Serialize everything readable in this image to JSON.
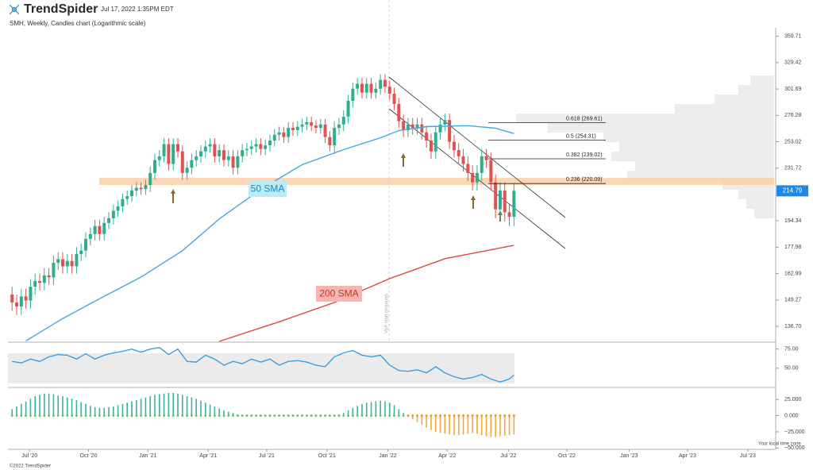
{
  "header": {
    "brand": "TrendSpider",
    "timestamp": "Jul 17, 2022 1:35PM EDT"
  },
  "footer": {
    "copyright": "©2022 TrendSpider",
    "timezone_note": "Your local time zone"
  },
  "chart_data": [
    {
      "type": "candlestick",
      "title": "SMH, Weekly, Candles chart (Logarithmic scale)",
      "log_scale": true,
      "xlim": [
        -0.9,
        165.5
      ],
      "xticks": [
        {
          "value": 3.8,
          "label": "Jul '20"
        },
        {
          "value": 16.6,
          "label": "Oct '20"
        },
        {
          "value": 29.5,
          "label": "Jan '21"
        },
        {
          "value": 42.6,
          "label": "Apr '21"
        },
        {
          "value": 55.3,
          "label": "Jul '21"
        },
        {
          "value": 68.4,
          "label": "Oct '21"
        },
        {
          "value": 81.6,
          "label": "Jan '22"
        },
        {
          "value": 94.5,
          "label": "Apr '22"
        },
        {
          "value": 107.8,
          "label": "Jul '22"
        },
        {
          "value": 120.5,
          "label": "Oct '22"
        },
        {
          "value": 134,
          "label": "Jan '23"
        },
        {
          "value": 146.7,
          "label": "Apr '23"
        },
        {
          "value": 159.8,
          "label": "Jul '23"
        }
      ],
      "ylim": [
        130,
        370
      ],
      "yticks": [
        {
          "value": 136.7,
          "label": "136.70"
        },
        149.27,
        162.99,
        177.98,
        194.34,
        231.72,
        253.02,
        276.28,
        301.69,
        329.42,
        359.71
      ],
      "up_color": "#2fae8e",
      "down_color": "#e0514f",
      "open": [
        152,
        148,
        146,
        151,
        149,
        156,
        159,
        158,
        162,
        161,
        169,
        171,
        167,
        170,
        167,
        174,
        176,
        183,
        186,
        191,
        186,
        193,
        196,
        201,
        204,
        209,
        211,
        215,
        217,
        216,
        219,
        228,
        238,
        241,
        251,
        235,
        251,
        245,
        228,
        232,
        238,
        241,
        245,
        249,
        251,
        241,
        246,
        238,
        241,
        232,
        241,
        246,
        247,
        249,
        251,
        247,
        250,
        254,
        259,
        261,
        257,
        265,
        263,
        266,
        268,
        270,
        267,
        265,
        268,
        257,
        250,
        265,
        268,
        275,
        290,
        302,
        307,
        298,
        307,
        298,
        302,
        311,
        304,
        297,
        287,
        271,
        263,
        268,
        265,
        268,
        261,
        254,
        245,
        261,
        268,
        272,
        253,
        246,
        241,
        235,
        228,
        221,
        228,
        241,
        238,
        221,
        202,
        215,
        200,
        197
      ],
      "high": [
        156,
        152,
        155,
        155,
        160,
        163,
        163,
        166,
        166,
        173,
        175,
        175,
        174,
        174,
        178,
        180,
        187,
        190,
        195,
        195,
        197,
        200,
        205,
        208,
        213,
        215,
        219,
        221,
        221,
        223,
        233,
        243,
        246,
        256,
        256,
        256,
        256,
        250,
        237,
        243,
        246,
        250,
        254,
        256,
        256,
        251,
        251,
        246,
        246,
        246,
        251,
        252,
        254,
        256,
        256,
        255,
        259,
        264,
        266,
        266,
        270,
        270,
        271,
        273,
        275,
        275,
        272,
        273,
        273,
        262,
        271,
        274,
        281,
        296,
        308,
        313,
        313,
        313,
        313,
        308,
        317,
        317,
        310,
        303,
        293,
        277,
        274,
        274,
        274,
        274,
        267,
        260,
        267,
        274,
        278,
        278,
        259,
        252,
        247,
        241,
        234,
        234,
        247,
        247,
        244,
        227,
        221,
        221,
        206,
        220
      ],
      "low": [
        144,
        142,
        142,
        145,
        145,
        152,
        154,
        154,
        157,
        157,
        165,
        163,
        163,
        163,
        163,
        170,
        172,
        179,
        182,
        182,
        182,
        189,
        192,
        197,
        200,
        205,
        207,
        211,
        212,
        212,
        214,
        223,
        233,
        236,
        230,
        230,
        240,
        223,
        223,
        227,
        233,
        236,
        240,
        244,
        236,
        236,
        233,
        233,
        227,
        227,
        236,
        241,
        242,
        244,
        242,
        242,
        245,
        249,
        254,
        252,
        252,
        258,
        258,
        261,
        263,
        262,
        260,
        260,
        252,
        245,
        244,
        259,
        262,
        269,
        284,
        296,
        292,
        292,
        292,
        292,
        296,
        298,
        291,
        281,
        265,
        257,
        257,
        259,
        259,
        255,
        248,
        239,
        239,
        255,
        262,
        247,
        240,
        235,
        229,
        222,
        215,
        215,
        222,
        232,
        215,
        196,
        196,
        194,
        191,
        191
      ],
      "close": [
        148,
        146,
        151,
        149,
        156,
        159,
        158,
        162,
        161,
        169,
        171,
        167,
        170,
        167,
        174,
        176,
        183,
        186,
        191,
        186,
        193,
        196,
        201,
        204,
        209,
        211,
        215,
        217,
        216,
        219,
        228,
        238,
        241,
        251,
        235,
        251,
        245,
        228,
        232,
        238,
        241,
        245,
        249,
        251,
        241,
        246,
        238,
        241,
        232,
        241,
        246,
        247,
        249,
        251,
        247,
        250,
        254,
        259,
        261,
        257,
        265,
        263,
        266,
        268,
        270,
        267,
        265,
        268,
        257,
        250,
        265,
        268,
        275,
        290,
        302,
        307,
        298,
        307,
        298,
        302,
        311,
        304,
        297,
        287,
        271,
        263,
        268,
        265,
        268,
        261,
        254,
        245,
        261,
        268,
        272,
        253,
        246,
        241,
        235,
        228,
        221,
        228,
        241,
        238,
        221,
        202,
        215,
        200,
        197,
        214.79
      ],
      "series": [
        {
          "name": "50 SMA",
          "color": "#42a9e0",
          "x": [
            3,
            11,
            20,
            28,
            37,
            45,
            54,
            63,
            72,
            80,
            84,
            90,
            99,
            105,
            109
          ],
          "values": [
            130.2,
            140.3,
            151.1,
            161.1,
            175.9,
            195.6,
            215.8,
            234.4,
            246.4,
            256.4,
            262.6,
            266.1,
            266.9,
            264.7,
            260.0
          ]
        },
        {
          "name": "200 SMA",
          "color": "#e0463c",
          "x": [
            45,
            58,
            70,
            82,
            94,
            109
          ],
          "values": [
            130,
            138.8,
            148.0,
            160.3,
            171.3,
            179.1
          ]
        }
      ],
      "fibonacci": [
        {
          "label": "0.618 (269.61)",
          "value": 269.61
        },
        {
          "label": "0.5 (254.31)",
          "value": 254.31
        },
        {
          "label": "0.382 (239.02)",
          "value": 239.02
        },
        {
          "label": "0.236 (220.09)",
          "value": 220.09
        }
      ],
      "last_price": 214.79,
      "annotation": "VbP start (manual)"
    },
    {
      "type": "line",
      "color": "#3aa0e0",
      "ylim": [
        26,
        83
      ],
      "yticks": [
        {
          "value": 75,
          "label": "75.00"
        },
        {
          "value": 50,
          "label": "50.00"
        }
      ],
      "x": [
        0,
        2,
        4,
        6,
        8,
        10,
        12,
        14,
        16,
        18,
        20,
        22,
        24,
        26,
        28,
        30,
        32,
        34,
        36,
        38,
        40,
        42,
        44,
        46,
        48,
        50,
        52,
        54,
        56,
        58,
        60,
        62,
        64,
        66,
        68,
        70,
        72,
        74,
        76,
        78,
        80,
        82,
        84,
        86,
        88,
        90,
        92,
        94,
        96,
        98,
        100,
        102,
        104,
        106,
        108,
        109
      ],
      "values": [
        59,
        57,
        62,
        59,
        65,
        68,
        67,
        62,
        69,
        62,
        67,
        70,
        72,
        75,
        71,
        75,
        77,
        68,
        75,
        59,
        58,
        67,
        62,
        54,
        59,
        56,
        62,
        58,
        62,
        54,
        59,
        60,
        58,
        54,
        52,
        65,
        70,
        73,
        67,
        65,
        67,
        54,
        47,
        46,
        48,
        44,
        52,
        44,
        39,
        36,
        38,
        42,
        36,
        32,
        36,
        41
      ]
    },
    {
      "type": "bar",
      "pos_color": "#3bb3a4",
      "neg_color": "#f2a93b",
      "dot_pos_color": "#6cc070",
      "dot_neg_color": "#e59a2e",
      "ylim": [
        -52,
        41
      ],
      "yticks": [
        {
          "value": 25,
          "label": "25.000"
        },
        {
          "value": 0,
          "label": "0.000"
        },
        {
          "value": -25,
          "label": "−25.000"
        },
        {
          "value": -50,
          "label": "−50.000"
        }
      ],
      "values": [
        10,
        14,
        18,
        22,
        26,
        30,
        32,
        34,
        34,
        33,
        31,
        30,
        28,
        26,
        24,
        21,
        18,
        15,
        13,
        12,
        12,
        13,
        14,
        16,
        18,
        20,
        22,
        24,
        26,
        28,
        30,
        32,
        33,
        34,
        35,
        35,
        34,
        32,
        30,
        28,
        26,
        23,
        20,
        17,
        14,
        11,
        8,
        6,
        4,
        2,
        1,
        0.5,
        0.5,
        1,
        1.5,
        1,
        0.5,
        1,
        2,
        1,
        0.5,
        1,
        1.5,
        2,
        1,
        0.5,
        1,
        1.5,
        1,
        0.5,
        1,
        2,
        4,
        8,
        12,
        15,
        18,
        20,
        21,
        22,
        23,
        22,
        20,
        16,
        10,
        4,
        -2,
        -6,
        -10,
        -14,
        -18,
        -22,
        -25,
        -27,
        -28,
        -29,
        -30,
        -30,
        -29,
        -28,
        -27,
        -28,
        -30,
        -32,
        -33,
        -33,
        -32,
        -31,
        -30,
        -29
      ]
    }
  ]
}
